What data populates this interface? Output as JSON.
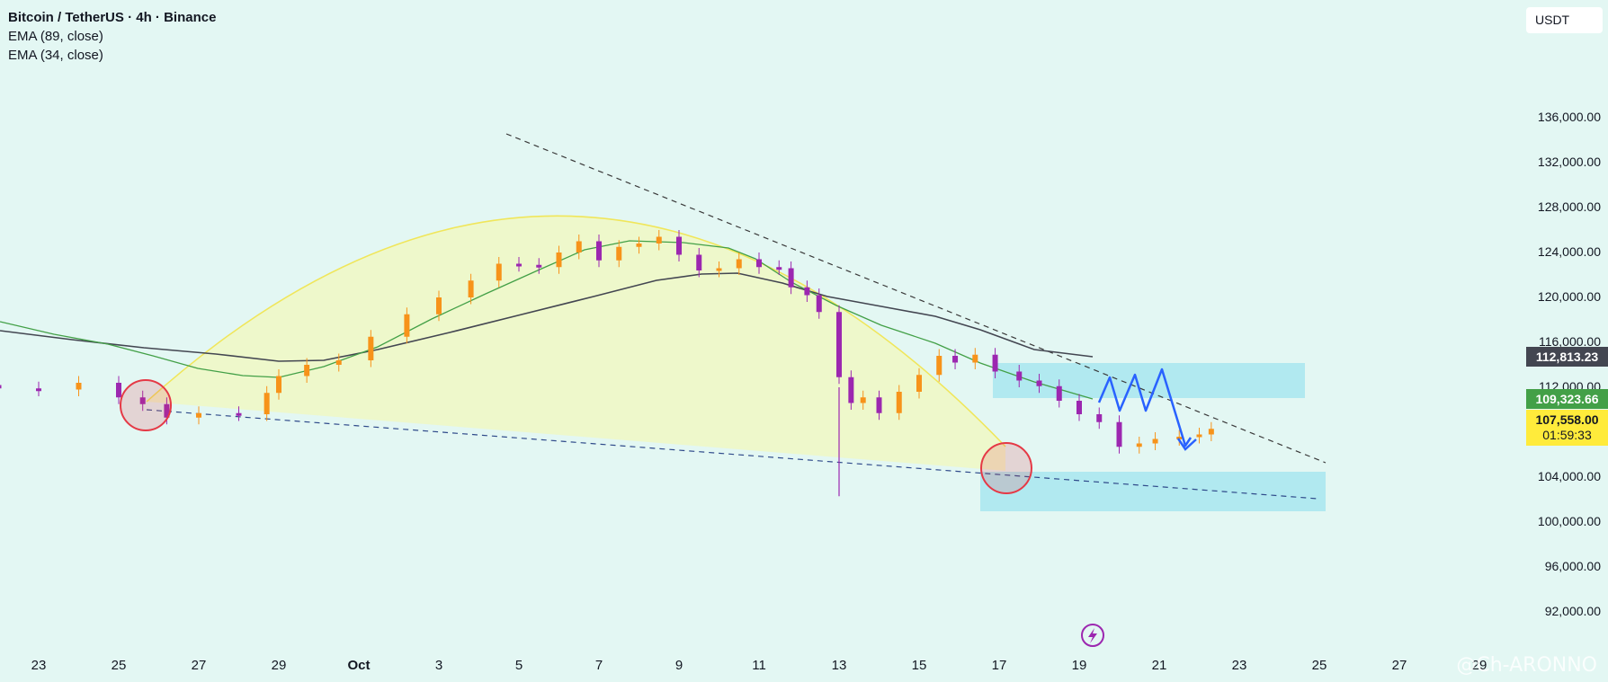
{
  "legend": {
    "title": "Bitcoin / TetherUS · 4h · Binance",
    "ema1": "EMA (89, close)",
    "ema2": "EMA (34, close)"
  },
  "currency": "USDT",
  "price_labels": {
    "ema89": "112,813.23",
    "ema34": "109,323.66",
    "last": "107,558.00",
    "countdown": "01:59:33"
  },
  "watermark": "@Ch-ARONNO",
  "icons": [
    "lightning-icon"
  ],
  "colors": {
    "background": "#e3f7f3",
    "up": "#f7931a",
    "down": "#9c27b0",
    "ema89": "#434651",
    "ema34": "#43a047",
    "zone": "#a8e6ee",
    "circle": "#e53946",
    "arc_fill": "#eef7c7",
    "projection": "#2962ff"
  },
  "chart_data": {
    "type": "candlestick",
    "title": "Bitcoin / TetherUS · 4h · Binance",
    "ylim": [
      90000,
      138000
    ],
    "y_ticks": [
      "92,000.00",
      "96,000.00",
      "100,000.00",
      "104,000.00",
      "108,000.00",
      "112,000.00",
      "116,000.00",
      "120,000.00",
      "124,000.00",
      "128,000.00",
      "132,000.00",
      "136,000.00"
    ],
    "x_ticks": [
      "23",
      "25",
      "27",
      "29",
      "Oct",
      "3",
      "5",
      "7",
      "9",
      "11",
      "13",
      "15",
      "17",
      "19",
      "21",
      "23",
      "25",
      "27",
      "29"
    ],
    "series": [
      {
        "name": "EMA (89, close)",
        "value_last": 112813.23
      },
      {
        "name": "EMA (34, close)",
        "value_last": 109323.66
      }
    ],
    "last_price": 107558.0,
    "countdown": "01:59:33",
    "candles_day_close": [
      [
        22,
        111900
      ],
      [
        23,
        111800
      ],
      [
        24,
        112400
      ],
      [
        25,
        111100
      ],
      [
        25.6,
        110500
      ],
      [
        26.2,
        109300
      ],
      [
        27,
        109700
      ],
      [
        28,
        109600
      ],
      [
        28.7,
        111500
      ],
      [
        29,
        113000
      ],
      [
        29.7,
        114000
      ],
      [
        30.5,
        114400
      ],
      [
        31.3,
        116500
      ],
      [
        32.2,
        118500
      ],
      [
        33,
        120000
      ],
      [
        33.8,
        121500
      ],
      [
        34.5,
        123000
      ],
      [
        35,
        122900
      ],
      [
        35.5,
        122700
      ],
      [
        36,
        124000
      ],
      [
        36.5,
        125000
      ],
      [
        37,
        123300
      ],
      [
        37.5,
        124500
      ],
      [
        38,
        124800
      ],
      [
        38.5,
        125400
      ],
      [
        39,
        123800
      ],
      [
        39.5,
        122400
      ],
      [
        40,
        122600
      ],
      [
        40.5,
        123400
      ],
      [
        41,
        122700
      ],
      [
        41.5,
        122600
      ],
      [
        41.8,
        120900
      ],
      [
        42.2,
        120200
      ],
      [
        42.5,
        118700
      ],
      [
        43,
        112900
      ],
      [
        43.3,
        110600
      ],
      [
        43.6,
        111100
      ],
      [
        44,
        109700
      ],
      [
        44.5,
        111600
      ],
      [
        45,
        113100
      ],
      [
        45.5,
        114800
      ],
      [
        45.9,
        114200
      ],
      [
        46.4,
        114900
      ],
      [
        46.9,
        113400
      ],
      [
        47.5,
        112600
      ],
      [
        48,
        112100
      ],
      [
        48.5,
        110800
      ],
      [
        49,
        109600
      ],
      [
        49.5,
        108900
      ],
      [
        50,
        106700
      ],
      [
        50.5,
        107000
      ],
      [
        50.9,
        107400
      ],
      [
        51.5,
        107600
      ],
      [
        52,
        107800
      ],
      [
        52.3,
        108300
      ]
    ]
  }
}
